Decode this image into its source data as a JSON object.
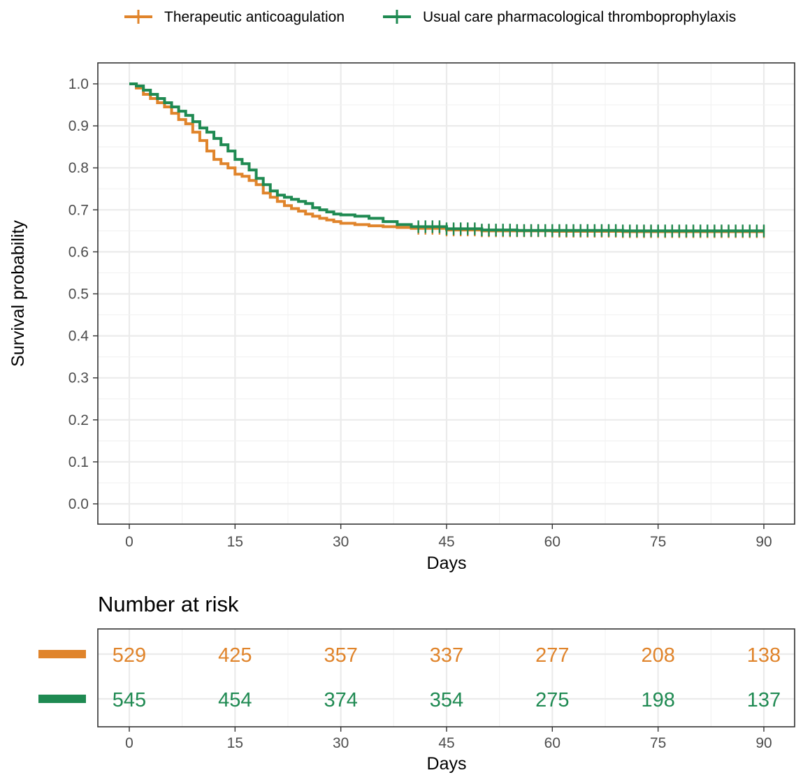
{
  "legend": {
    "items": [
      {
        "label": "Therapeutic anticoagulation",
        "color": "#E0842B"
      },
      {
        "label": "Usual care pharmacological thromboprophylaxis",
        "color": "#1F8A52"
      }
    ]
  },
  "chart_data": {
    "type": "line",
    "step": true,
    "censor_marks": true,
    "xlabel": "Days",
    "ylabel": "Survival probability",
    "xlim": [
      0,
      90
    ],
    "ylim": [
      0,
      1
    ],
    "x_ticks": [
      "0",
      "15",
      "30",
      "45",
      "60",
      "75",
      "90"
    ],
    "y_ticks": [
      "0.0",
      "0.1",
      "0.2",
      "0.3",
      "0.4",
      "0.5",
      "0.6",
      "0.7",
      "0.8",
      "0.9",
      "1.0"
    ],
    "grid": true,
    "legend_position": "top",
    "series": [
      {
        "name": "Therapeutic anticoagulation",
        "color": "#E0842B",
        "x": [
          0,
          1,
          2,
          3,
          4,
          5,
          6,
          7,
          8,
          9,
          10,
          11,
          12,
          13,
          14,
          15,
          16,
          17,
          18,
          19,
          20,
          21,
          22,
          23,
          24,
          25,
          26,
          27,
          28,
          29,
          30,
          32,
          34,
          36,
          38,
          40,
          45,
          50,
          55,
          60,
          70,
          80,
          90
        ],
        "y": [
          1.0,
          0.99,
          0.975,
          0.965,
          0.955,
          0.945,
          0.93,
          0.915,
          0.905,
          0.885,
          0.865,
          0.84,
          0.82,
          0.81,
          0.8,
          0.785,
          0.78,
          0.77,
          0.76,
          0.74,
          0.73,
          0.72,
          0.71,
          0.703,
          0.697,
          0.69,
          0.685,
          0.68,
          0.676,
          0.672,
          0.668,
          0.665,
          0.662,
          0.66,
          0.658,
          0.656,
          0.652,
          0.65,
          0.65,
          0.649,
          0.648,
          0.648,
          0.648
        ],
        "censor_x": [
          41,
          42,
          43,
          44,
          45,
          46,
          47,
          48,
          49,
          50,
          51,
          52,
          53,
          54,
          55,
          56,
          57,
          58,
          59,
          60,
          61,
          62,
          63,
          64,
          65,
          66,
          67,
          68,
          69,
          70,
          71,
          72,
          73,
          74,
          75,
          76,
          77,
          78,
          79,
          80,
          81,
          82,
          83,
          84,
          85,
          86,
          87,
          88,
          89,
          90
        ]
      },
      {
        "name": "Usual care pharmacological thromboprophylaxis",
        "color": "#1F8A52",
        "x": [
          0,
          1,
          2,
          3,
          4,
          5,
          6,
          7,
          8,
          9,
          10,
          11,
          12,
          13,
          14,
          15,
          16,
          17,
          18,
          19,
          20,
          21,
          22,
          23,
          24,
          25,
          26,
          27,
          28,
          29,
          30,
          32,
          34,
          36,
          38,
          40,
          45,
          50,
          55,
          60,
          70,
          80,
          90
        ],
        "y": [
          1.0,
          0.995,
          0.985,
          0.975,
          0.965,
          0.955,
          0.945,
          0.935,
          0.925,
          0.91,
          0.895,
          0.885,
          0.87,
          0.855,
          0.84,
          0.82,
          0.81,
          0.795,
          0.775,
          0.76,
          0.745,
          0.735,
          0.73,
          0.725,
          0.72,
          0.715,
          0.705,
          0.7,
          0.695,
          0.69,
          0.688,
          0.685,
          0.68,
          0.672,
          0.665,
          0.66,
          0.655,
          0.652,
          0.651,
          0.651,
          0.65,
          0.65,
          0.65
        ],
        "censor_x": [
          41,
          42,
          43,
          44,
          45,
          46,
          47,
          48,
          49,
          50,
          51,
          52,
          53,
          54,
          55,
          56,
          57,
          58,
          59,
          60,
          61,
          62,
          63,
          64,
          65,
          66,
          67,
          68,
          69,
          70,
          71,
          72,
          73,
          74,
          75,
          76,
          77,
          78,
          79,
          80,
          81,
          82,
          83,
          84,
          85,
          86,
          87,
          88,
          89,
          90
        ]
      }
    ]
  },
  "risk_table": {
    "title": "Number at risk",
    "xlabel": "Days",
    "x_ticks": [
      "0",
      "15",
      "30",
      "45",
      "60",
      "75",
      "90"
    ],
    "rows": [
      {
        "color": "#E0842B",
        "values": [
          "529",
          "425",
          "357",
          "337",
          "277",
          "208",
          "138"
        ]
      },
      {
        "color": "#1F8A52",
        "values": [
          "545",
          "454",
          "374",
          "354",
          "275",
          "198",
          "137"
        ]
      }
    ]
  }
}
